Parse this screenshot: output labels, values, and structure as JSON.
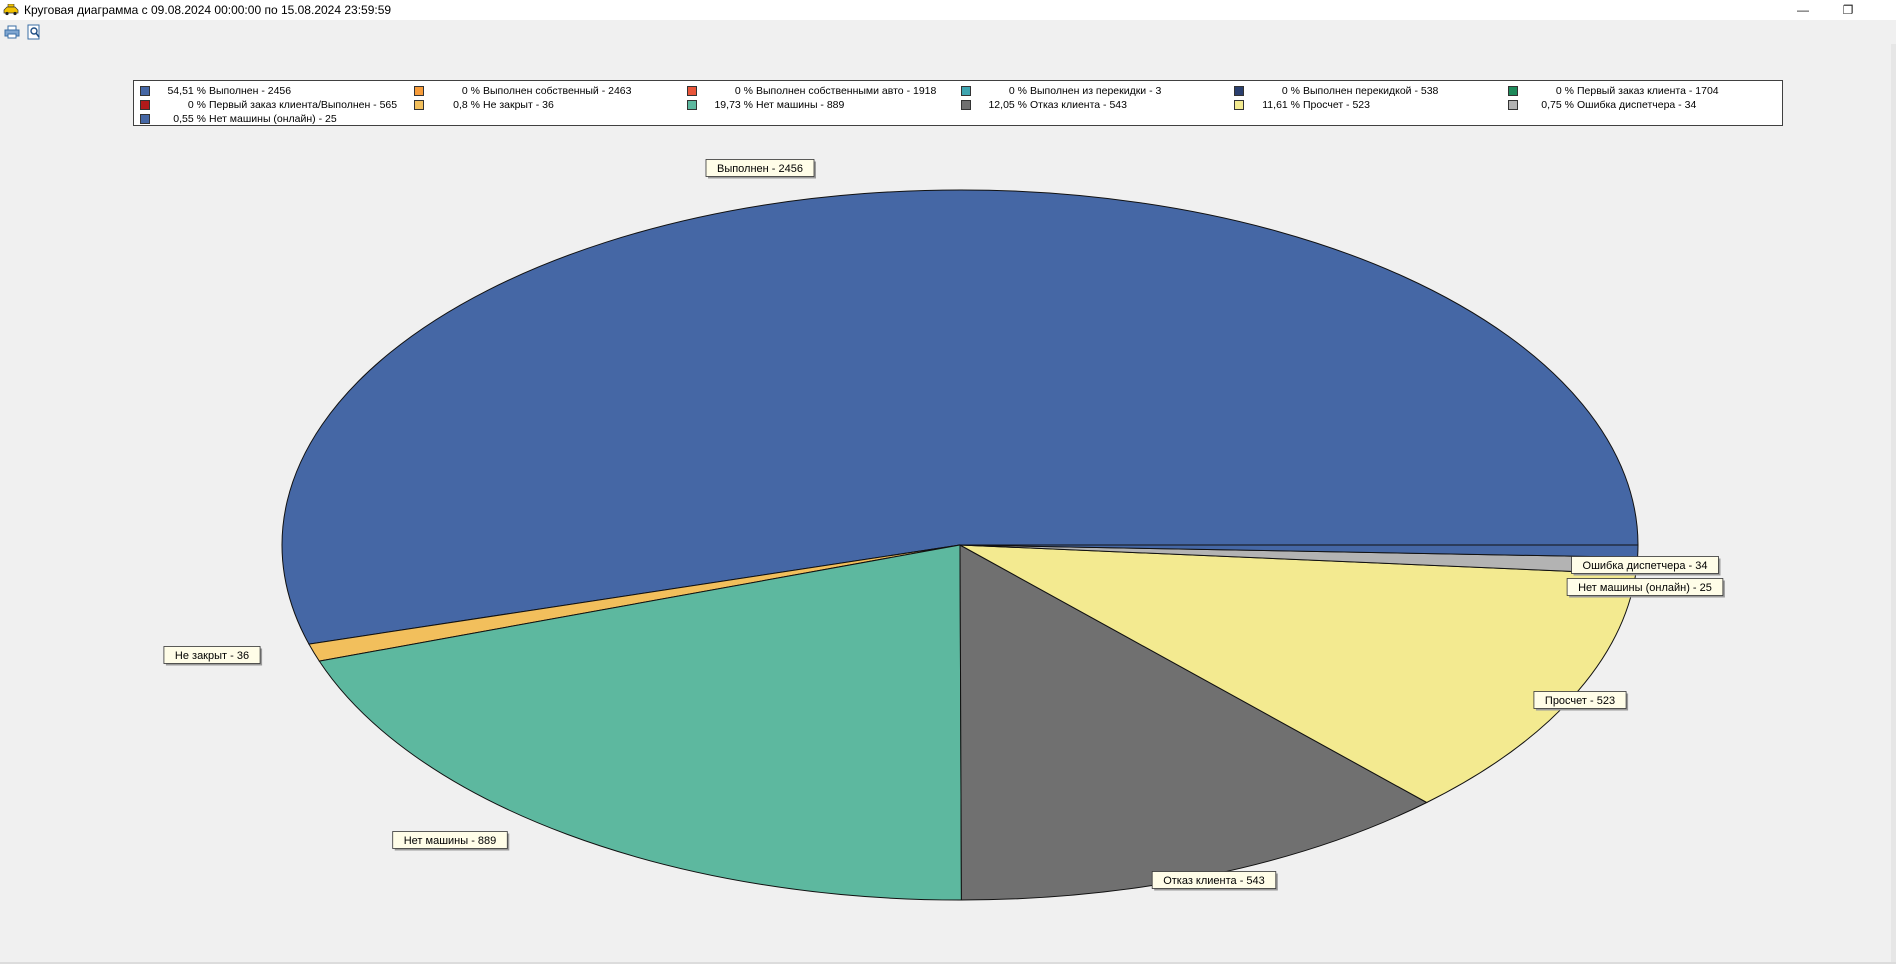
{
  "window": {
    "title": "Круговая диаграмма с 09.08.2024 00:00:00 по 15.08.2024 23:59:59",
    "app_icon": "taxi-car-icon",
    "minimize_glyph": "—",
    "restore_glyph": "❐"
  },
  "toolbar": {
    "buttons": [
      {
        "icon": "print-icon"
      },
      {
        "icon": "print-preview-icon"
      }
    ]
  },
  "colors": {
    "Выполнен": "#4567a5",
    "Выполнен собственный": "#f79c3a",
    "Выполнен собственными авто": "#e8553a",
    "Выполнен из перекидки": "#3fa5b0",
    "Выполнен перекидкой": "#2a3f6e",
    "Первый заказ клиента": "#1e8a5a",
    "Первый заказ клиента/Выполнен": "#b01a1a",
    "Не закрыт": "#f2bf5c",
    "Нет машины": "#5db89f",
    "Отказ клиента": "#707070",
    "Просчет": "#f3ea90",
    "Ошибка диспетчера": "#b3b3b3",
    "Нет машины (онлайн)": "#4567a5"
  },
  "chart_data": {
    "type": "pie",
    "title": "",
    "legend_position": "top",
    "legend": [
      {
        "pct": "54,51 %",
        "label": "Выполнен - 2456"
      },
      {
        "pct": "0 %",
        "label": "Выполнен собственный - 2463"
      },
      {
        "pct": "0 %",
        "label": "Выполнен собственными авто - 1918"
      },
      {
        "pct": "0 %",
        "label": "Выполнен из перекидки - 3"
      },
      {
        "pct": "0 %",
        "label": "Выполнен перекидкой - 538"
      },
      {
        "pct": "0 %",
        "label": "Первый заказ клиента - 1704"
      },
      {
        "pct": "0 %",
        "label": "Первый заказ клиента/Выполнен - 565"
      },
      {
        "pct": "0,8 %",
        "label": "Не закрыт - 36"
      },
      {
        "pct": "19,73 %",
        "label": "Нет машины - 889"
      },
      {
        "pct": "12,05 %",
        "label": "Отказ клиента - 543"
      },
      {
        "pct": "11,61 %",
        "label": "Просчет - 523"
      },
      {
        "pct": "0,75 %",
        "label": "Ошибка диспетчера - 34"
      },
      {
        "pct": "0,55 %",
        "label": "Нет машины (онлайн) - 25"
      }
    ],
    "slices": [
      {
        "name": "Выполнен",
        "value": 2456,
        "percent": 54.51,
        "label": "Выполнен - 2456"
      },
      {
        "name": "Не закрыт",
        "value": 36,
        "percent": 0.8,
        "label": "Не закрыт - 36"
      },
      {
        "name": "Нет машины",
        "value": 889,
        "percent": 19.73,
        "label": "Нет машины - 889"
      },
      {
        "name": "Отказ клиента",
        "value": 543,
        "percent": 12.05,
        "label": "Отказ клиента - 543"
      },
      {
        "name": "Просчет",
        "value": 523,
        "percent": 11.61,
        "label": "Просчет - 523"
      },
      {
        "name": "Ошибка диспетчера",
        "value": 34,
        "percent": 0.75,
        "label": "Ошибка диспетчера - 34"
      },
      {
        "name": "Нет машины (онлайн)",
        "value": 25,
        "percent": 0.55,
        "label": "Нет машины (онлайн) - 25"
      }
    ]
  }
}
